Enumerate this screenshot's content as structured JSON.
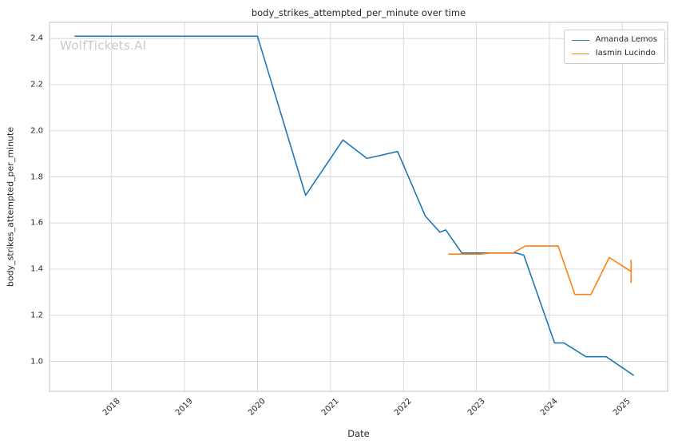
{
  "watermark": "WolfTickets.AI",
  "colors": {
    "background": "#ffffff",
    "grid": "#d9d9d9",
    "spine": "#cccccc",
    "text": "#262626",
    "watermark": "#c9c9c9"
  },
  "legend": {
    "position": "upper right",
    "entries": [
      {
        "label": "Amanda Lemos",
        "color": "#1f77b4"
      },
      {
        "label": "Iasmin Lucindo",
        "color": "#ff7f0e"
      }
    ]
  },
  "chart_data": {
    "type": "line",
    "title": "body_strikes_attempted_per_minute over time",
    "xlabel": "Date",
    "ylabel": "body_strikes_attempted_per_minute",
    "grid": true,
    "legend_position": "upper right",
    "xlim": [
      2017.15,
      2025.62
    ],
    "ylim": [
      0.87,
      2.47
    ],
    "xticks": [
      2018,
      2019,
      2020,
      2021,
      2022,
      2023,
      2024,
      2025
    ],
    "xtick_labels": [
      "2018",
      "2019",
      "2020",
      "2021",
      "2022",
      "2023",
      "2024",
      "2025"
    ],
    "yticks": [
      1.0,
      1.2,
      1.4,
      1.6,
      1.8,
      2.0,
      2.2,
      2.4
    ],
    "ytick_labels": [
      "1.0",
      "1.2",
      "1.4",
      "1.6",
      "1.8",
      "2.0",
      "2.2",
      "2.4"
    ],
    "series": [
      {
        "name": "Amanda Lemos",
        "color": "#1f77b4",
        "points": [
          [
            2017.5,
            2.41
          ],
          [
            2020.0,
            2.41
          ],
          [
            2020.66,
            1.72
          ],
          [
            2021.17,
            1.96
          ],
          [
            2021.5,
            1.88
          ],
          [
            2021.92,
            1.91
          ],
          [
            2022.3,
            1.63
          ],
          [
            2022.5,
            1.56
          ],
          [
            2022.58,
            1.57
          ],
          [
            2022.8,
            1.47
          ],
          [
            2023.25,
            1.47
          ],
          [
            2023.55,
            1.47
          ],
          [
            2023.65,
            1.46
          ],
          [
            2024.07,
            1.08
          ],
          [
            2024.2,
            1.08
          ],
          [
            2024.5,
            1.02
          ],
          [
            2024.78,
            1.02
          ],
          [
            2025.15,
            0.94
          ]
        ]
      },
      {
        "name": "Iasmin Lucindo",
        "color": "#ff7f0e",
        "points": [
          [
            2022.62,
            1.465
          ],
          [
            2023.05,
            1.465
          ],
          [
            2023.2,
            1.47
          ],
          [
            2023.5,
            1.47
          ],
          [
            2023.67,
            1.5
          ],
          [
            2024.12,
            1.5
          ],
          [
            2024.35,
            1.29
          ],
          [
            2024.57,
            1.29
          ],
          [
            2024.82,
            1.45
          ],
          [
            2025.12,
            1.39
          ]
        ],
        "error_bar": {
          "x": 2025.12,
          "y": 1.39,
          "low": 1.34,
          "high": 1.44
        }
      }
    ]
  }
}
